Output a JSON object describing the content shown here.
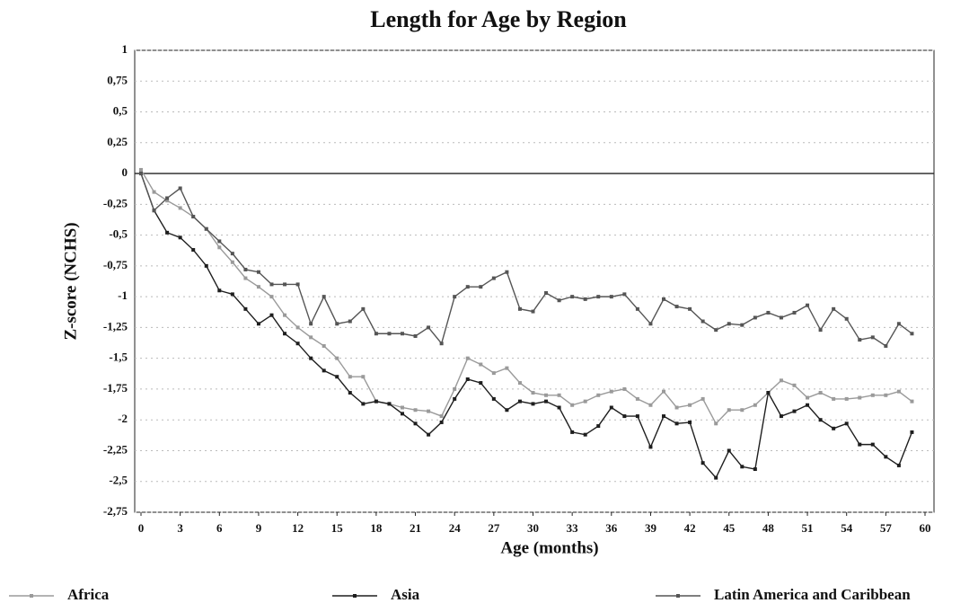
{
  "chart_data": {
    "type": "line",
    "title": "Length for Age by Region",
    "x_label": "Age (months)",
    "y_label": "Z-score (NCHS)",
    "x": [
      0,
      1,
      2,
      3,
      4,
      5,
      6,
      7,
      8,
      9,
      10,
      11,
      12,
      13,
      14,
      15,
      16,
      17,
      18,
      19,
      20,
      21,
      22,
      23,
      24,
      25,
      26,
      27,
      28,
      29,
      30,
      31,
      32,
      33,
      34,
      35,
      36,
      37,
      38,
      39,
      40,
      41,
      42,
      43,
      44,
      45,
      46,
      47,
      48,
      49,
      50,
      51,
      52,
      53,
      54,
      55,
      56,
      57,
      58,
      59
    ],
    "xlim": [
      0,
      60
    ],
    "xticks": [
      0,
      3,
      6,
      9,
      12,
      15,
      18,
      21,
      24,
      27,
      30,
      33,
      36,
      39,
      42,
      45,
      48,
      51,
      54,
      57,
      60
    ],
    "ylim": [
      -2.75,
      1
    ],
    "yticks": [
      1,
      {
        "value": 0.75,
        "label": "0,75"
      },
      {
        "value": 0.5,
        "label": "0,5"
      },
      {
        "value": 0.25,
        "label": "0,25"
      },
      0,
      {
        "value": -0.25,
        "label": "-0,25"
      },
      {
        "value": -0.5,
        "label": "-0,5"
      },
      {
        "value": -0.75,
        "label": "-0,75"
      },
      -1,
      {
        "value": -1.25,
        "label": "-1,25"
      },
      {
        "value": -1.5,
        "label": "-1,5"
      },
      {
        "value": -1.75,
        "label": "-1,75"
      },
      -2,
      {
        "value": -2.25,
        "label": "-2,25"
      },
      {
        "value": -2.5,
        "label": "-2,5"
      },
      {
        "value": -2.75,
        "label": "-2,75"
      }
    ],
    "grid": true,
    "legend": "bottom",
    "series": [
      {
        "name": "Africa",
        "color": "#9a9a9a",
        "values": [
          0.03,
          -0.15,
          -0.22,
          -0.28,
          -0.35,
          -0.45,
          -0.6,
          -0.72,
          -0.85,
          -0.92,
          -1.0,
          -1.15,
          -1.25,
          -1.33,
          -1.4,
          -1.5,
          -1.65,
          -1.65,
          -1.85,
          -1.87,
          -1.9,
          -1.92,
          -1.93,
          -1.97,
          -1.75,
          -1.5,
          -1.55,
          -1.62,
          -1.58,
          -1.7,
          -1.78,
          -1.8,
          -1.8,
          -1.88,
          -1.85,
          -1.8,
          -1.77,
          -1.75,
          -1.83,
          -1.88,
          -1.77,
          -1.9,
          -1.88,
          -1.83,
          -2.03,
          -1.92,
          -1.92,
          -1.88,
          -1.78,
          -1.68,
          -1.72,
          -1.82,
          -1.78,
          -1.83,
          -1.83,
          -1.82,
          -1.8,
          -1.8,
          -1.77,
          -1.85
        ]
      },
      {
        "name": "Asia",
        "color": "#1e1e1e",
        "values": [
          0,
          -0.3,
          -0.48,
          -0.52,
          -0.62,
          -0.75,
          -0.95,
          -0.98,
          -1.1,
          -1.22,
          -1.15,
          -1.3,
          -1.38,
          -1.5,
          -1.6,
          -1.65,
          -1.78,
          -1.87,
          -1.85,
          -1.87,
          -1.95,
          -2.03,
          -2.12,
          -2.02,
          -1.83,
          -1.67,
          -1.7,
          -1.83,
          -1.92,
          -1.85,
          -1.87,
          -1.85,
          -1.9,
          -2.1,
          -2.12,
          -2.05,
          -1.9,
          -1.97,
          -1.97,
          -2.22,
          -1.97,
          -2.03,
          -2.02,
          -2.35,
          -2.47,
          -2.25,
          -2.38,
          -2.4,
          -1.78,
          -1.97,
          -1.93,
          -1.88,
          -2.0,
          -2.07,
          -2.03,
          -2.2,
          -2.2,
          -2.3,
          -2.37,
          -2.1
        ]
      },
      {
        "name": "Latin America and Caribbean",
        "color": "#555555",
        "values": [
          0,
          -0.3,
          -0.2,
          -0.12,
          -0.35,
          -0.45,
          -0.55,
          -0.65,
          -0.78,
          -0.8,
          -0.9,
          -0.9,
          -0.9,
          -1.22,
          -1.0,
          -1.22,
          -1.2,
          -1.1,
          -1.3,
          -1.3,
          -1.3,
          -1.32,
          -1.25,
          -1.38,
          -1.0,
          -0.92,
          -0.92,
          -0.85,
          -0.8,
          -1.1,
          -1.12,
          -0.97,
          -1.03,
          -1.0,
          -1.02,
          -1.0,
          -1.0,
          -0.98,
          -1.1,
          -1.22,
          -1.02,
          -1.08,
          -1.1,
          -1.2,
          -1.27,
          -1.22,
          -1.23,
          -1.17,
          -1.13,
          -1.17,
          -1.13,
          -1.07,
          -1.27,
          -1.1,
          -1.18,
          -1.35,
          -1.33,
          -1.4,
          -1.22,
          -1.3
        ]
      }
    ]
  }
}
